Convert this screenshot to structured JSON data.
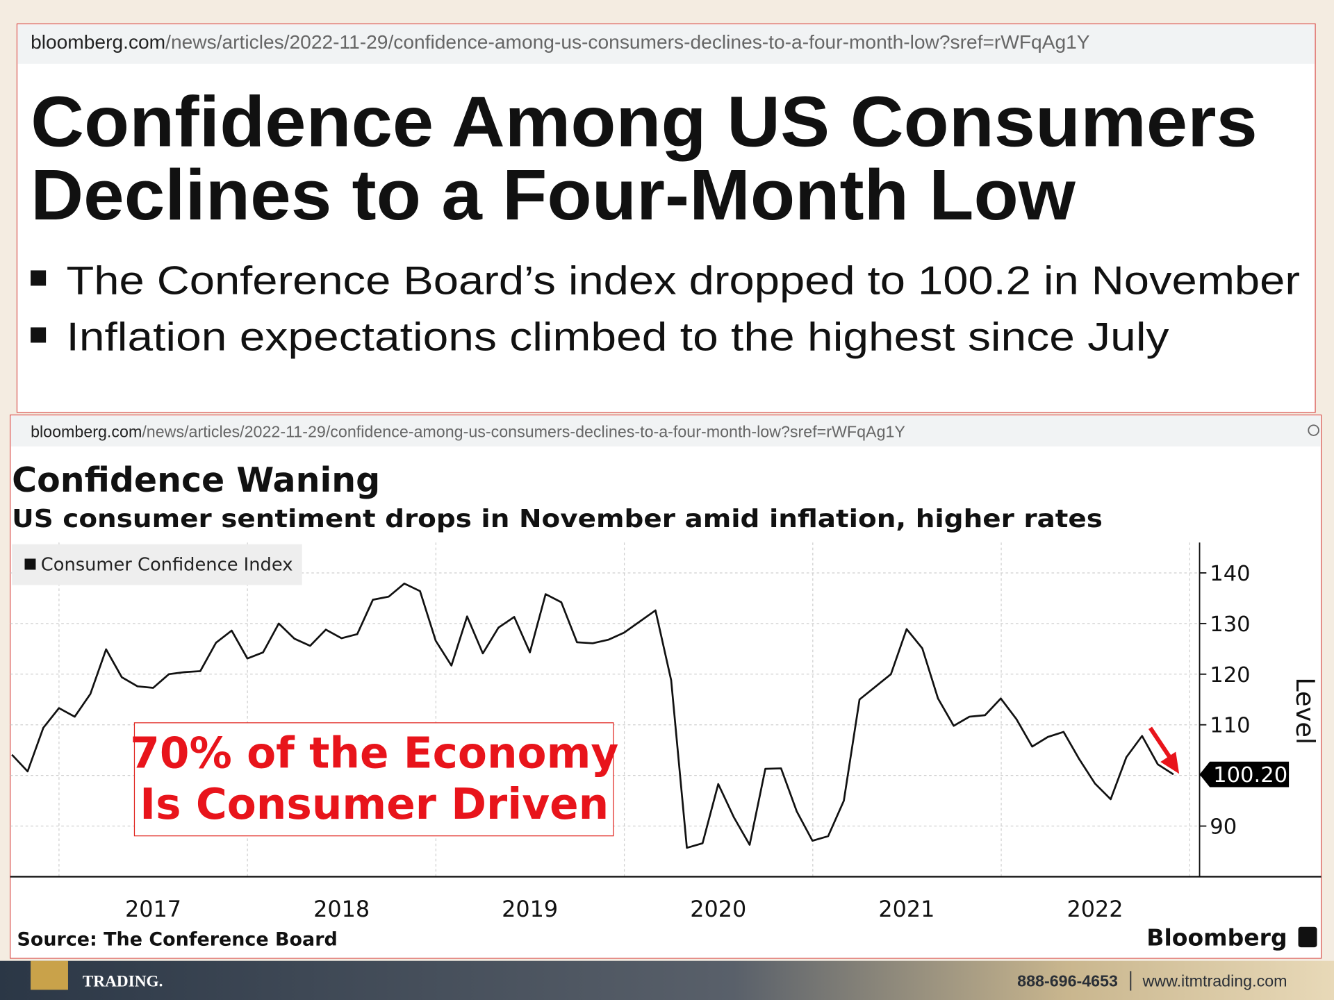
{
  "article": {
    "url_domain": "bloomberg.com",
    "url_path": "/news/articles/2022-11-29/confidence-among-us-consumers-declines-to-a-four-month-low?sref=rWFqAg1Y",
    "title_lines": [
      "Confidence Among US Consumers",
      "Declines to a Four-Month Low"
    ],
    "bullets": [
      "The Conference Board’s index dropped to 100.2 in November",
      "Inflation expectations climbed to the highest since July"
    ]
  },
  "chart_panel": {
    "url_domain": "bloomberg.com",
    "url_path": "/news/articles/2022-11-29/confidence-among-us-consumers-declines-to-a-four-month-low?sref=rWFqAg1Y"
  },
  "chart_data": {
    "type": "line",
    "title": "Confidence Waning",
    "subtitle": "US consumer sentiment drops in November amid inflation, higher rates",
    "ylabel": "Level",
    "source": "Source: The Conference Board",
    "brand": "Bloomberg",
    "annotation_lines": [
      "70% of the Economy",
      "Is Consumer Driven"
    ],
    "categories": [
      null,
      null,
      null,
      null,
      null,
      null,
      null,
      null,
      null,
      "2017",
      null,
      null,
      null,
      null,
      null,
      null,
      null,
      null,
      null,
      null,
      null,
      "2018",
      null,
      null,
      null,
      null,
      null,
      null,
      null,
      null,
      null,
      null,
      null,
      "2019",
      null,
      null,
      null,
      null,
      null,
      null,
      null,
      null,
      null,
      null,
      null,
      "2020",
      null,
      null,
      null,
      null,
      null,
      null,
      null,
      null,
      null,
      null,
      null,
      "2021",
      null,
      null,
      null,
      null,
      null,
      null,
      null,
      null,
      null,
      null,
      null,
      "2022",
      null,
      null,
      null,
      null,
      null
    ],
    "series": [
      {
        "name": "Consumer Confidence Index",
        "color": "#111111",
        "values": [
          104.1,
          100.8,
          109.4,
          113.3,
          111.6,
          116.1,
          124.9,
          119.4,
          117.6,
          117.3,
          120.0,
          120.4,
          120.6,
          126.2,
          128.6,
          123.1,
          124.3,
          130.0,
          127.0,
          125.6,
          128.8,
          127.1,
          127.9,
          134.7,
          135.3,
          137.9,
          136.4,
          126.6,
          121.7,
          131.4,
          124.1,
          129.2,
          131.3,
          124.3,
          135.8,
          134.2,
          126.3,
          126.1,
          126.8,
          128.2,
          130.4,
          132.6,
          118.8,
          85.7,
          86.6,
          98.3,
          91.7,
          86.3,
          101.3,
          101.4,
          92.9,
          87.1,
          88.0,
          95.0,
          115.0,
          117.5,
          120.0,
          128.9,
          125.1,
          115.2,
          109.8,
          111.6,
          111.9,
          115.2,
          111.1,
          105.7,
          107.6,
          108.6,
          103.2,
          98.4,
          95.3,
          103.6,
          107.8,
          102.2,
          100.2
        ],
        "value_labels": [
          null,
          null,
          null,
          null,
          null,
          null,
          null,
          null,
          null,
          null,
          null,
          null,
          null,
          null,
          null,
          null,
          null,
          null,
          null,
          null,
          null,
          null,
          null,
          null,
          null,
          null,
          null,
          null,
          null,
          null,
          null,
          null,
          null,
          null,
          null,
          null,
          null,
          null,
          null,
          null,
          null,
          null,
          null,
          null,
          null,
          null,
          null,
          null,
          null,
          null,
          null,
          null,
          null,
          null,
          null,
          null,
          null,
          null,
          null,
          null,
          null,
          null,
          null,
          null,
          null,
          null,
          null,
          null,
          null,
          null,
          null,
          null,
          null,
          null,
          "100.20"
        ]
      }
    ],
    "ylim": [
      80,
      146
    ],
    "yticks": [
      90,
      100,
      110,
      120,
      130,
      140
    ],
    "ytick_labels_shown": [
      90,
      110,
      120,
      130,
      140
    ],
    "grid": true,
    "legend": "top-left"
  },
  "footer": {
    "logo": "TRADING.",
    "phone": "888-696-4653",
    "website": "www.itmtrading.com"
  }
}
